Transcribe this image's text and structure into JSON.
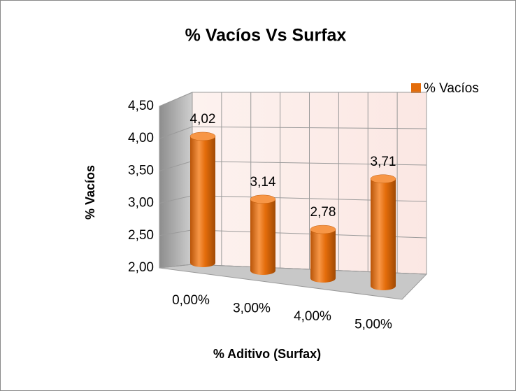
{
  "chart_data": {
    "type": "bar3d",
    "title": "% Vacíos Vs Surfax",
    "categories": [
      "0,00%",
      "3,00%",
      "4,00%",
      "5,00%"
    ],
    "series": [
      {
        "name": "% Vacíos",
        "color": "#e46c0a",
        "values": [
          4.02,
          3.14,
          2.78,
          3.71
        ],
        "value_labels": [
          "4,02",
          "3,14",
          "2,78",
          "3,71"
        ]
      }
    ],
    "ylim": [
      2,
      4.5
    ],
    "yticks": [
      {
        "value": 2,
        "label": "2,00"
      },
      {
        "value": 2.5,
        "label": "2,50"
      },
      {
        "value": 3,
        "label": "3,00"
      },
      {
        "value": 3.5,
        "label": "3,50"
      },
      {
        "value": 4,
        "label": "4,00"
      },
      {
        "value": 4.5,
        "label": "4,50"
      }
    ],
    "y_label": "% Vacíos",
    "x_label": "% Aditivo (Surfax)",
    "legend": "right",
    "grid": true
  }
}
